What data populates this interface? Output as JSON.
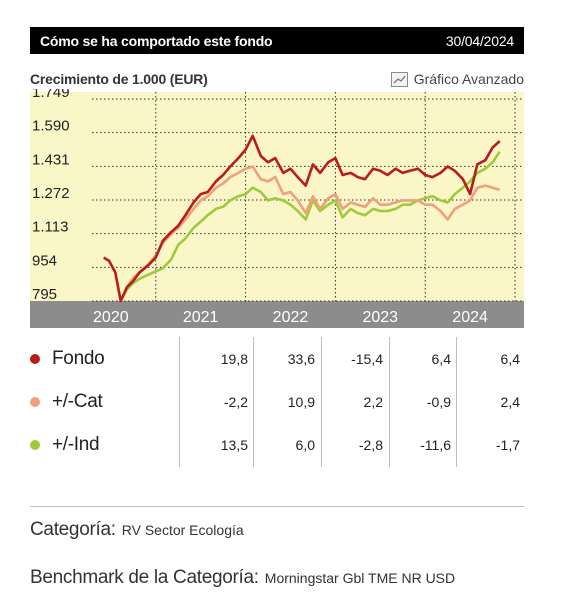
{
  "header": {
    "title": "Cómo se ha comportado este fondo",
    "date": "30/04/2024"
  },
  "subheader": {
    "growth_label": "Crecimiento de 1.000 (EUR)",
    "advanced_label": "Gráfico Avanzado"
  },
  "colors": {
    "fondo": "#b81c1c",
    "cat": "#f0a07a",
    "ind": "#9ccc3c",
    "plot_bg": "#fbf6c8",
    "axis_band": "#8c8c8c"
  },
  "chart_data": {
    "type": "line",
    "title": "",
    "xlabel": "",
    "ylabel": "",
    "y_ticks": [
      "1.749",
      "1.590",
      "1.431",
      "1.272",
      "1.113",
      "954",
      "795"
    ],
    "y_tick_values": [
      1749,
      1590,
      1431,
      1272,
      1113,
      954,
      795
    ],
    "ylim": [
      795,
      1749
    ],
    "x_ticks": [
      "2020",
      "2021",
      "2022",
      "2023",
      "2024"
    ],
    "x_tick_values": [
      2020.0,
      2021.0,
      2022.0,
      2023.0,
      2024.0
    ],
    "xlim": [
      2019.1,
      2024.6
    ],
    "grid": true,
    "series": [
      {
        "name": "Fondo",
        "x": [
          2019.92,
          2019.98,
          2020.05,
          2020.11,
          2020.18,
          2020.25,
          2020.32,
          2020.42,
          2020.5,
          2020.58,
          2020.67,
          2020.75,
          2020.83,
          2020.92,
          2021.0,
          2021.08,
          2021.17,
          2021.25,
          2021.33,
          2021.42,
          2021.5,
          2021.58,
          2021.67,
          2021.75,
          2021.83,
          2021.92,
          2022.0,
          2022.08,
          2022.17,
          2022.25,
          2022.33,
          2022.42,
          2022.5,
          2022.58,
          2022.67,
          2022.75,
          2022.83,
          2022.92,
          2023.0,
          2023.08,
          2023.17,
          2023.25,
          2023.33,
          2023.42,
          2023.5,
          2023.58,
          2023.67,
          2023.75,
          2023.83,
          2023.92,
          2024.0,
          2024.08,
          2024.17,
          2024.25,
          2024.33
        ],
        "values": [
          1000,
          985,
          930,
          795,
          860,
          890,
          930,
          965,
          1000,
          1080,
          1120,
          1150,
          1200,
          1260,
          1300,
          1310,
          1360,
          1390,
          1430,
          1470,
          1510,
          1575,
          1480,
          1450,
          1470,
          1400,
          1420,
          1380,
          1340,
          1440,
          1400,
          1450,
          1470,
          1390,
          1400,
          1380,
          1370,
          1420,
          1410,
          1390,
          1420,
          1400,
          1410,
          1420,
          1390,
          1380,
          1400,
          1430,
          1410,
          1370,
          1300,
          1440,
          1460,
          1520,
          1550
        ]
      },
      {
        "name": "+/-Cat",
        "x": [
          2020.11,
          2020.18,
          2020.25,
          2020.32,
          2020.42,
          2020.5,
          2020.58,
          2020.67,
          2020.75,
          2020.83,
          2020.92,
          2021.0,
          2021.08,
          2021.17,
          2021.25,
          2021.33,
          2021.42,
          2021.5,
          2021.58,
          2021.67,
          2021.75,
          2021.83,
          2021.92,
          2022.0,
          2022.08,
          2022.17,
          2022.25,
          2022.33,
          2022.42,
          2022.5,
          2022.58,
          2022.67,
          2022.75,
          2022.83,
          2022.92,
          2023.0,
          2023.08,
          2023.17,
          2023.25,
          2023.33,
          2023.42,
          2023.5,
          2023.58,
          2023.67,
          2023.75,
          2023.83,
          2023.92,
          2024.0,
          2024.08,
          2024.17,
          2024.25,
          2024.33
        ],
        "values": [
          795,
          860,
          905,
          930,
          970,
          1010,
          1070,
          1110,
          1140,
          1180,
          1230,
          1270,
          1290,
          1330,
          1350,
          1380,
          1400,
          1420,
          1430,
          1370,
          1360,
          1380,
          1300,
          1310,
          1270,
          1210,
          1290,
          1230,
          1280,
          1300,
          1230,
          1260,
          1250,
          1240,
          1280,
          1250,
          1250,
          1260,
          1270,
          1270,
          1270,
          1250,
          1250,
          1220,
          1180,
          1230,
          1250,
          1270,
          1330,
          1340,
          1330,
          1320
        ]
      },
      {
        "name": "+/-Ind",
        "x": [
          2020.11,
          2020.18,
          2020.25,
          2020.32,
          2020.42,
          2020.5,
          2020.58,
          2020.67,
          2020.75,
          2020.83,
          2020.92,
          2021.0,
          2021.08,
          2021.17,
          2021.25,
          2021.33,
          2021.42,
          2021.5,
          2021.58,
          2021.67,
          2021.75,
          2021.83,
          2021.92,
          2022.0,
          2022.08,
          2022.17,
          2022.25,
          2022.33,
          2022.42,
          2022.5,
          2022.58,
          2022.67,
          2022.75,
          2022.83,
          2022.92,
          2023.0,
          2023.08,
          2023.17,
          2023.25,
          2023.33,
          2023.42,
          2023.5,
          2023.58,
          2023.67,
          2023.75,
          2023.83,
          2023.92,
          2024.0,
          2024.08,
          2024.17,
          2024.25,
          2024.33
        ],
        "values": [
          795,
          850,
          880,
          900,
          920,
          935,
          950,
          990,
          1060,
          1090,
          1140,
          1170,
          1200,
          1230,
          1240,
          1270,
          1290,
          1300,
          1330,
          1310,
          1270,
          1280,
          1270,
          1250,
          1220,
          1180,
          1270,
          1220,
          1250,
          1270,
          1190,
          1230,
          1210,
          1200,
          1230,
          1220,
          1220,
          1230,
          1250,
          1250,
          1270,
          1280,
          1290,
          1270,
          1260,
          1300,
          1330,
          1360,
          1400,
          1420,
          1450,
          1500
        ]
      }
    ]
  },
  "table": {
    "rows": [
      {
        "label": "Fondo",
        "values": [
          "19,8",
          "33,6",
          "-15,4",
          "6,4",
          "6,4"
        ]
      },
      {
        "label": "+/-Cat",
        "values": [
          "-2,2",
          "10,9",
          "2,2",
          "-0,9",
          "2,4"
        ]
      },
      {
        "label": "+/-Ind",
        "values": [
          "13,5",
          "6,0",
          "-2,8",
          "-11,6",
          "-1,7"
        ]
      }
    ]
  },
  "category": {
    "label": "Categoría:",
    "value": "RV Sector Ecología"
  },
  "benchmark": {
    "label": "Benchmark de la Categoría:",
    "value": "Morningstar Gbl TME NR USD"
  }
}
